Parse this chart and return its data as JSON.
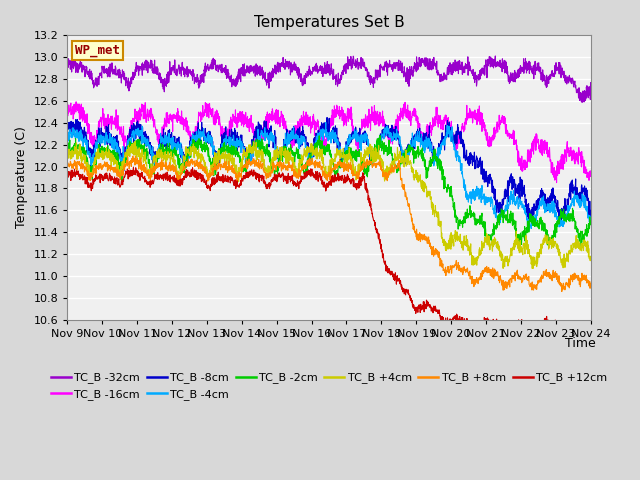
{
  "title": "Temperatures Set B",
  "xlabel": "Time",
  "ylabel": "Temperature (C)",
  "ylim": [
    10.6,
    13.2
  ],
  "xlim": [
    0,
    15
  ],
  "yticks": [
    10.6,
    10.8,
    11.0,
    11.2,
    11.4,
    11.6,
    11.8,
    12.0,
    12.2,
    12.4,
    12.6,
    12.8,
    13.0,
    13.2
  ],
  "xtick_labels": [
    "Nov 9",
    "Nov 10",
    "Nov 11",
    "Nov 12",
    "Nov 13",
    "Nov 14",
    "Nov 15",
    "Nov 16",
    "Nov 17",
    "Nov 18",
    "Nov 19",
    "Nov 20",
    "Nov 21",
    "Nov 22",
    "Nov 23",
    "Nov 24"
  ],
  "series": [
    {
      "label": "TC_B -32cm",
      "color": "#9900cc",
      "base": 12.87,
      "osc": 0.06,
      "noise": 0.03,
      "drop_start": 14.0,
      "drop_speed": 3.0,
      "drop_amount": 0.18,
      "period": 1.0
    },
    {
      "label": "TC_B -16cm",
      "color": "#ff00ff",
      "base": 12.42,
      "osc": 0.1,
      "noise": 0.04,
      "drop_start": 12.5,
      "drop_speed": 2.5,
      "drop_amount": 0.28,
      "period": 0.95
    },
    {
      "label": "TC_B -8cm",
      "color": "#0000cc",
      "base": 12.28,
      "osc": 0.1,
      "noise": 0.04,
      "drop_start": 11.5,
      "drop_speed": 2.0,
      "drop_amount": 0.52,
      "period": 0.9
    },
    {
      "label": "TC_B -4cm",
      "color": "#00aaff",
      "base": 12.19,
      "osc": 0.09,
      "noise": 0.03,
      "drop_start": 11.0,
      "drop_speed": 2.0,
      "drop_amount": 0.62,
      "period": 0.9
    },
    {
      "label": "TC_B -2cm",
      "color": "#00cc00",
      "base": 12.1,
      "osc": 0.09,
      "noise": 0.03,
      "drop_start": 10.5,
      "drop_speed": 2.0,
      "drop_amount": 0.68,
      "period": 0.88
    },
    {
      "label": "TC_B +4cm",
      "color": "#cccc00",
      "base": 12.05,
      "osc": 0.08,
      "noise": 0.03,
      "drop_start": 10.0,
      "drop_speed": 1.8,
      "drop_amount": 0.82,
      "period": 0.85
    },
    {
      "label": "TC_B +8cm",
      "color": "#ff8800",
      "base": 11.98,
      "osc": 0.05,
      "noise": 0.02,
      "drop_start": 9.5,
      "drop_speed": 1.5,
      "drop_amount": 1.0,
      "period": 0.85
    },
    {
      "label": "TC_B +12cm",
      "color": "#cc0000",
      "base": 11.9,
      "osc": 0.04,
      "noise": 0.02,
      "drop_start": 8.5,
      "drop_speed": 1.2,
      "drop_amount": 1.35,
      "period": 0.85
    }
  ],
  "wp_met_label": "WP_met",
  "wp_met_color": "#990000",
  "wp_met_bg": "#ffffcc",
  "wp_met_border": "#cc8800",
  "background_color": "#d8d8d8",
  "plot_bg_color": "#f0f0f0",
  "grid_color": "#ffffff",
  "title_fontsize": 11,
  "label_fontsize": 9,
  "tick_fontsize": 8,
  "legend_fontsize": 8
}
